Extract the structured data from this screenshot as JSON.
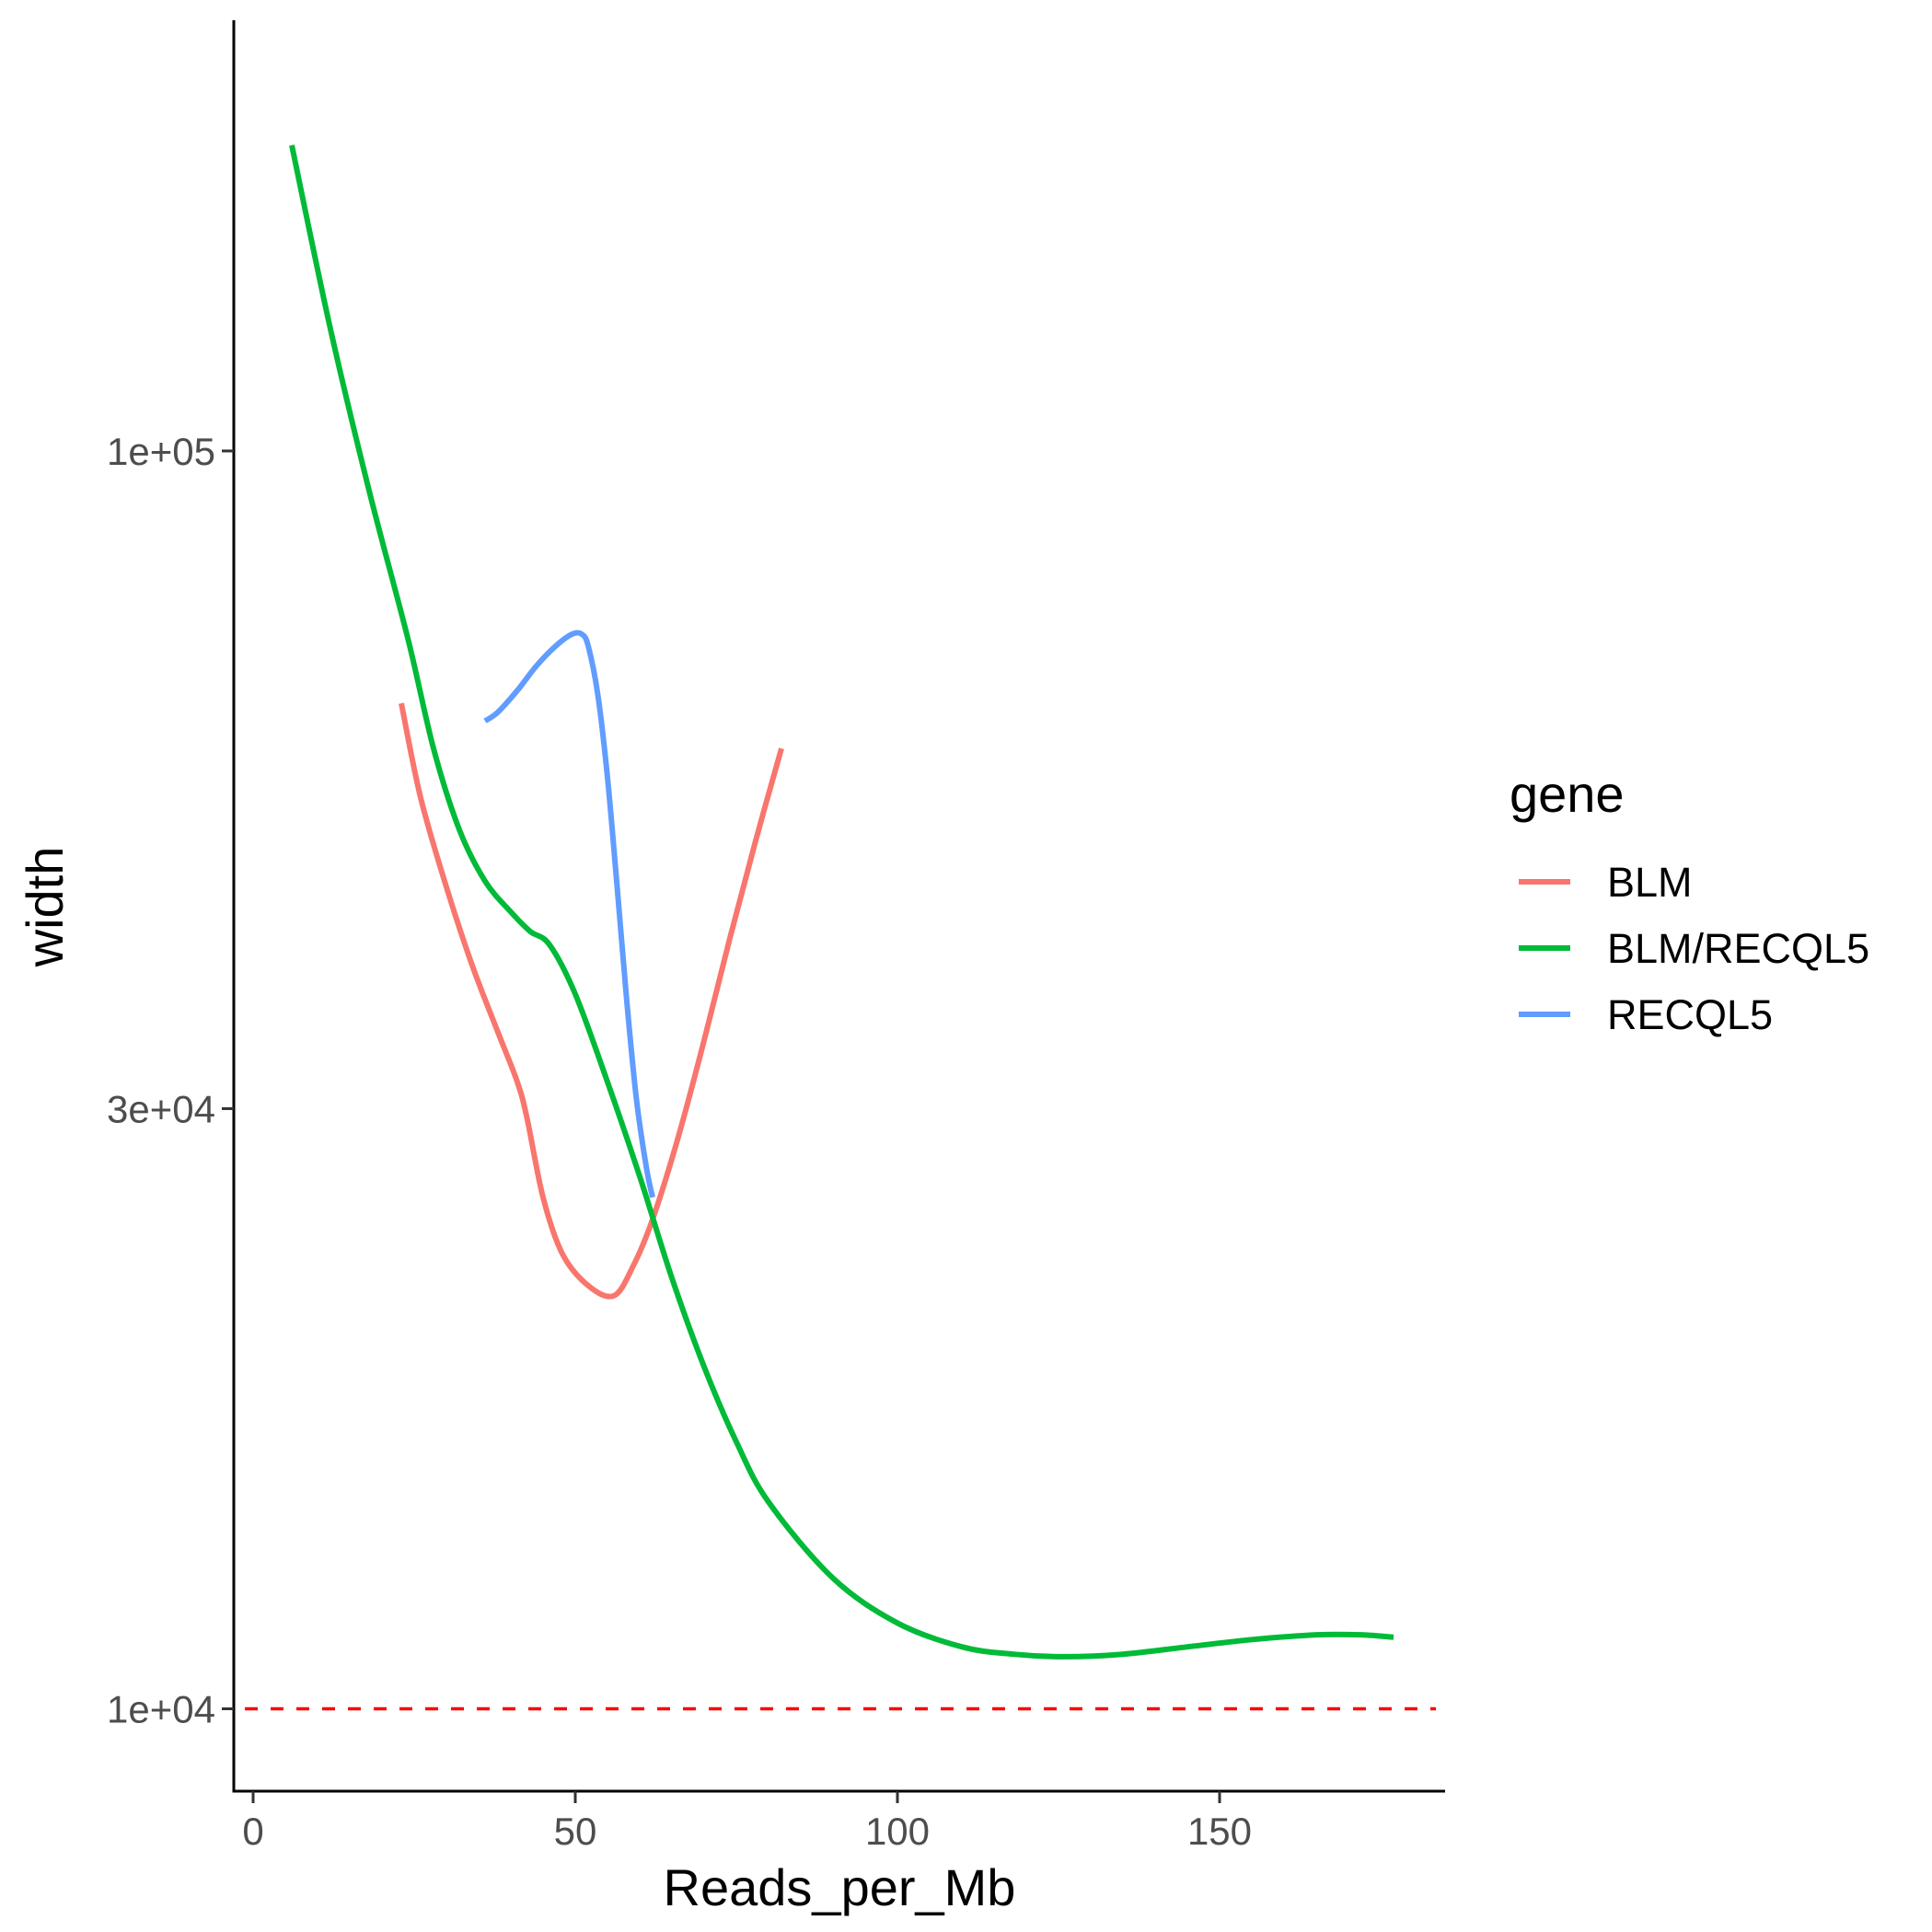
{
  "chart_data": {
    "type": "line",
    "xlabel": "Reads_per_Mb",
    "ylabel": "width",
    "y_scale": "log10",
    "xlim": [
      -3,
      185
    ],
    "ylim": [
      8600,
      220000
    ],
    "x_ticks": [
      0,
      50,
      100,
      150
    ],
    "x_tick_labels": [
      "0",
      "50",
      "100",
      "150"
    ],
    "y_ticks": [
      10000,
      30000,
      100000
    ],
    "y_tick_labels": [
      "1e+04",
      "3e+04",
      "1e+05"
    ],
    "grid": false,
    "legend": {
      "title": "gene",
      "position": "right"
    },
    "reference_line": {
      "y": 10000,
      "color": "#FF0000",
      "style": "dashed"
    },
    "series": [
      {
        "name": "BLM",
        "color": "#F8766D",
        "points": [
          [
            23,
            63000
          ],
          [
            26,
            53000
          ],
          [
            30,
            45000
          ],
          [
            34,
            39000
          ],
          [
            38,
            34500
          ],
          [
            41,
            31500
          ],
          [
            42.5,
            29500
          ],
          [
            45,
            25500
          ],
          [
            48,
            23000
          ],
          [
            52,
            21700
          ],
          [
            56,
            21300
          ],
          [
            59,
            22500
          ],
          [
            62,
            24500
          ],
          [
            66,
            28500
          ],
          [
            70,
            34000
          ],
          [
            74,
            41000
          ],
          [
            78,
            49000
          ],
          [
            82,
            58000
          ]
        ]
      },
      {
        "name": "BLM/RECQL5",
        "color": "#00BA38",
        "points": [
          [
            6,
            175000
          ],
          [
            12,
            125000
          ],
          [
            18,
            93000
          ],
          [
            24,
            71000
          ],
          [
            28,
            58000
          ],
          [
            32,
            50000
          ],
          [
            36,
            45500
          ],
          [
            40,
            43000
          ],
          [
            43,
            41500
          ],
          [
            46,
            40500
          ],
          [
            50,
            37000
          ],
          [
            55,
            31500
          ],
          [
            60,
            26500
          ],
          [
            65,
            22000
          ],
          [
            70,
            18700
          ],
          [
            75,
            16300
          ],
          [
            80,
            14600
          ],
          [
            90,
            12700
          ],
          [
            100,
            11700
          ],
          [
            110,
            11200
          ],
          [
            118,
            11050
          ],
          [
            126,
            11000
          ],
          [
            135,
            11050
          ],
          [
            145,
            11200
          ],
          [
            155,
            11350
          ],
          [
            165,
            11450
          ],
          [
            172,
            11450
          ],
          [
            177,
            11400
          ]
        ]
      },
      {
        "name": "RECQL5",
        "color": "#619CFF",
        "points": [
          [
            36,
            61000
          ],
          [
            38,
            62000
          ],
          [
            41,
            64500
          ],
          [
            44,
            67500
          ],
          [
            47,
            70000
          ],
          [
            49.5,
            71500
          ],
          [
            51,
            71500
          ],
          [
            52,
            70000
          ],
          [
            53.5,
            64000
          ],
          [
            55,
            55000
          ],
          [
            56.5,
            45000
          ],
          [
            58,
            36500
          ],
          [
            59.5,
            30500
          ],
          [
            61,
            27000
          ],
          [
            62,
            25500
          ]
        ]
      }
    ]
  }
}
